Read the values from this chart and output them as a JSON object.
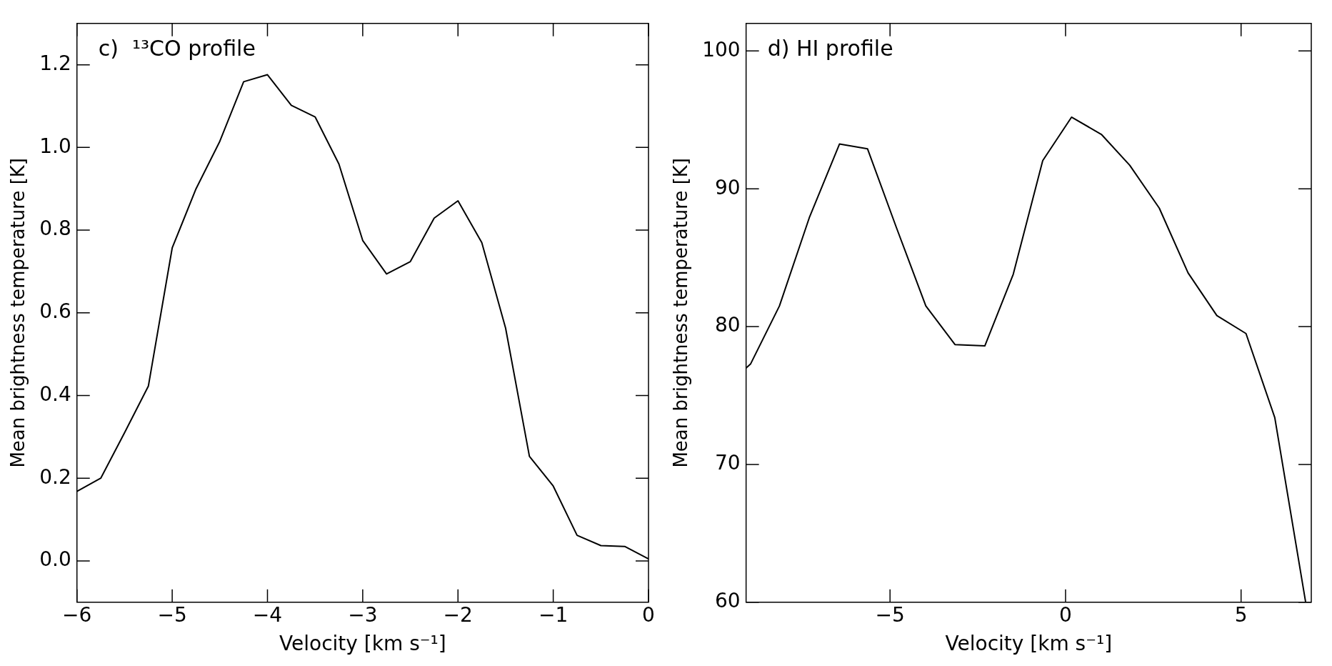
{
  "chart_data": [
    {
      "type": "line",
      "annotations": [
        "c)  ¹³CO profile"
      ],
      "xlabel": "Velocity [km s⁻¹]",
      "ylabel": "Mean brightness temperature [K]",
      "x": [
        -6,
        -5.75,
        -5.5,
        -5.25,
        -5,
        -4.75,
        -4.5,
        -4.25,
        -4,
        -3.75,
        -3.5,
        -3.25,
        -3,
        -2.75,
        -2.5,
        -2.25,
        -2,
        -1.75,
        -1.5,
        -1.25,
        -1,
        -0.75,
        -0.5,
        -0.25,
        0
      ],
      "values": [
        0.168,
        0.2,
        0.31,
        0.423,
        0.757,
        0.9,
        1.015,
        1.159,
        1.176,
        1.102,
        1.074,
        0.96,
        0.775,
        0.694,
        0.724,
        0.829,
        0.871,
        0.77,
        0.563,
        0.253,
        0.181,
        0.062,
        0.037,
        0.035,
        0.005
      ],
      "color": "#000000",
      "xlim": [
        -6,
        0
      ],
      "xticks": [
        -6,
        -5,
        -4,
        -3,
        -2,
        -1,
        0
      ],
      "ylim": [
        -0.1,
        1.3
      ],
      "yticks": [
        {
          "value": 0,
          "label": "0.0"
        },
        {
          "value": 0.2,
          "label": "0.2"
        },
        {
          "value": 0.4,
          "label": "0.4"
        },
        {
          "value": 0.6,
          "label": "0.6"
        },
        {
          "value": 0.8,
          "label": "0.8"
        },
        {
          "value": 1,
          "label": "1.0"
        },
        {
          "value": 1.2,
          "label": "1.2"
        }
      ],
      "grid": false,
      "legend": false,
      "marker": "none",
      "line_style": "solid"
    },
    {
      "type": "line",
      "annotations": [
        "d) HI profile"
      ],
      "xlabel": "Velocity [km s⁻¹]",
      "ylabel": "Mean brightness temperature [K]",
      "x": [
        -9.1,
        -8.97,
        -8.15,
        -7.3,
        -6.44,
        -5.64,
        -4.82,
        -3.98,
        -3.15,
        -2.3,
        -1.49,
        -0.65,
        0.17,
        1.02,
        1.83,
        2.67,
        3.49,
        4.31,
        5.14,
        5.96,
        6.84
      ],
      "values": [
        77.0,
        77.3,
        81.5,
        87.9,
        93.25,
        92.9,
        87.2,
        81.5,
        78.7,
        78.6,
        83.8,
        92.05,
        95.2,
        93.95,
        91.7,
        88.6,
        83.9,
        80.8,
        79.5,
        73.4,
        60.0
      ],
      "color": "#000000",
      "xlim": [
        -9.1,
        7
      ],
      "xticks": [
        -5,
        0,
        5
      ],
      "ylim": [
        60,
        102
      ],
      "yticks": [
        60,
        70,
        80,
        90,
        100
      ],
      "grid": false,
      "legend": false,
      "marker": "none",
      "line_style": "solid"
    }
  ]
}
